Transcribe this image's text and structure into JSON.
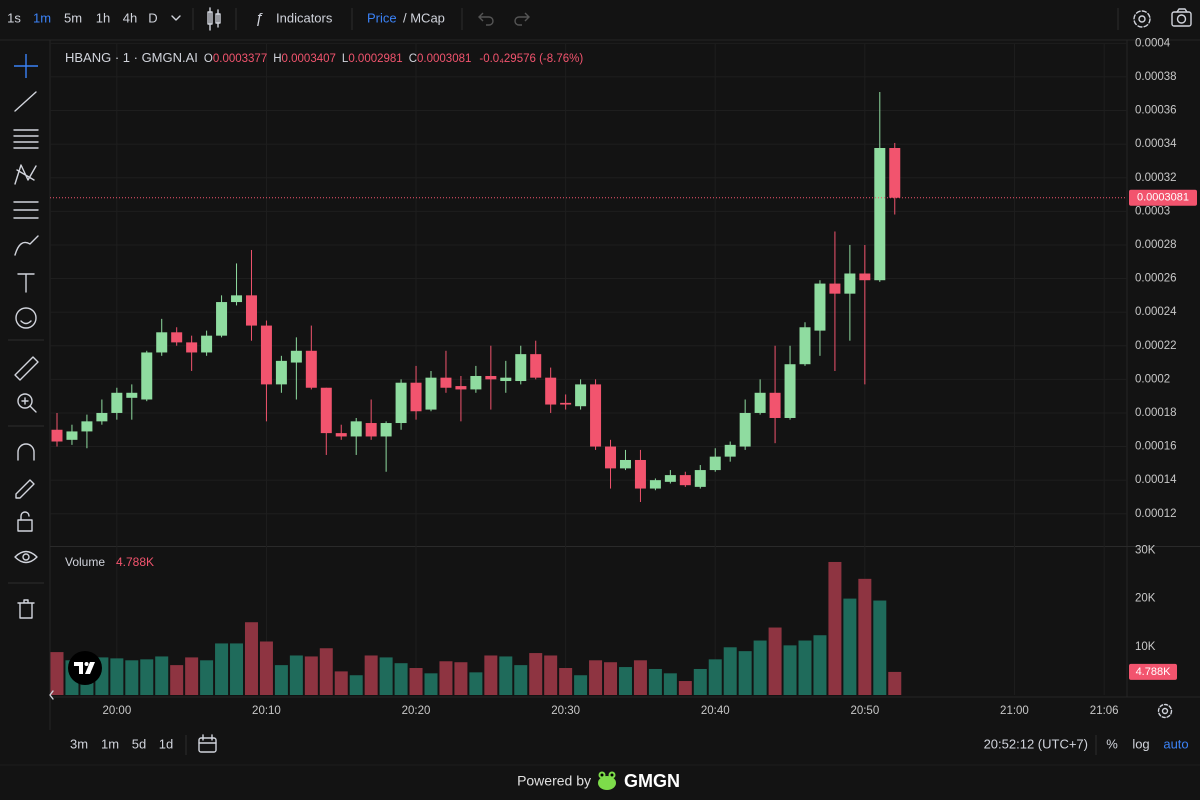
{
  "toolbar": {
    "intervals": [
      "1s",
      "1m",
      "5m",
      "1h",
      "4h",
      "D"
    ],
    "indicators": "Indicators",
    "price": "Price",
    "mcap": "/ MCap"
  },
  "legend": {
    "symbol": "HBANG · 1 · GMGN.AI",
    "ohlc": [
      {
        "key": "O",
        "value": "0.0003377"
      },
      {
        "key": "H",
        "value": "0.0003407"
      },
      {
        "key": "L",
        "value": "0.0002981"
      },
      {
        "key": "C",
        "value": "0.0003081"
      }
    ],
    "change": "-0.0₄29576 (-8.76%)"
  },
  "chart_data": [
    {
      "type": "candlestick",
      "x": [
        "19:56",
        "19:57",
        "19:58",
        "19:59",
        "20:00",
        "20:01",
        "20:02",
        "20:03",
        "20:04",
        "20:05",
        "20:06",
        "20:07",
        "20:08",
        "20:09",
        "20:10",
        "20:11",
        "20:12",
        "20:13",
        "20:14",
        "20:15",
        "20:16",
        "20:17",
        "20:18",
        "20:19",
        "20:20",
        "20:21",
        "20:22",
        "20:23",
        "20:24",
        "20:25",
        "20:26",
        "20:27",
        "20:28",
        "20:29",
        "20:30",
        "20:31",
        "20:32",
        "20:33",
        "20:34",
        "20:35",
        "20:36",
        "20:37",
        "20:38",
        "20:39",
        "20:40",
        "20:41",
        "20:42",
        "20:43",
        "20:44",
        "20:45",
        "20:46",
        "20:47",
        "20:48",
        "20:49",
        "20:50",
        "20:51",
        "20:52"
      ],
      "open": [
        0.00017,
        0.000164,
        0.000169,
        0.000175,
        0.00018,
        0.000189,
        0.000188,
        0.000216,
        0.000228,
        0.000222,
        0.000216,
        0.000226,
        0.000246,
        0.00025,
        0.000232,
        0.000197,
        0.00021,
        0.000217,
        0.000195,
        0.000168,
        0.000166,
        0.000174,
        0.000166,
        0.000174,
        0.000198,
        0.000182,
        0.000201,
        0.000196,
        0.000194,
        0.000202,
        0.000199,
        0.000199,
        0.000215,
        0.000201,
        0.000186,
        0.000184,
        0.000197,
        0.00016,
        0.000147,
        0.000152,
        0.000135,
        0.000139,
        0.000143,
        0.000136,
        0.000146,
        0.000154,
        0.00016,
        0.00018,
        0.000192,
        0.000177,
        0.000209,
        0.000229,
        0.000257,
        0.000251,
        0.000263,
        0.000259,
        0.0003377
      ],
      "high": [
        0.00018,
        0.000173,
        0.000179,
        0.000188,
        0.000195,
        0.000197,
        0.000217,
        0.000236,
        0.000231,
        0.000226,
        0.000229,
        0.00025,
        0.000269,
        0.000277,
        0.000235,
        0.000214,
        0.000225,
        0.000232,
        0.000195,
        0.000173,
        0.000177,
        0.000188,
        0.000175,
        0.0002,
        0.000208,
        0.000205,
        0.000217,
        0.000202,
        0.000208,
        0.00022,
        0.000211,
        0.00022,
        0.000223,
        0.000207,
        0.000191,
        0.0002,
        0.0002,
        0.000164,
        0.000158,
        0.000158,
        0.000141,
        0.000146,
        0.000145,
        0.000149,
        0.000159,
        0.000163,
        0.000188,
        0.0002,
        0.00022,
        0.00022,
        0.000234,
        0.000259,
        0.000288,
        0.00028,
        0.00028,
        0.000371,
        0.0003407
      ],
      "low": [
        0.00016,
        0.000161,
        0.000159,
        0.000173,
        0.000176,
        0.000176,
        0.000187,
        0.000214,
        0.00022,
        0.000205,
        0.000214,
        0.000225,
        0.000244,
        0.000223,
        0.000175,
        0.000192,
        0.000188,
        0.000194,
        0.000155,
        0.000164,
        0.000155,
        0.000164,
        0.000145,
        0.00017,
        0.000176,
        0.000181,
        0.000192,
        0.000175,
        0.000192,
        0.000182,
        0.000192,
        0.000197,
        0.0002,
        0.00018,
        0.000182,
        0.000182,
        0.000158,
        0.000135,
        0.000146,
        0.000127,
        0.000134,
        0.000138,
        0.000136,
        0.000135,
        0.000145,
        0.000151,
        0.000158,
        0.000179,
        0.000162,
        0.000176,
        0.000208,
        0.000214,
        0.000205,
        0.000223,
        0.000197,
        0.000258,
        0.0002981
      ],
      "close": [
        0.000163,
        0.000169,
        0.000175,
        0.00018,
        0.000192,
        0.000192,
        0.000216,
        0.000228,
        0.000222,
        0.000216,
        0.000226,
        0.000246,
        0.00025,
        0.000232,
        0.000197,
        0.000211,
        0.000217,
        0.000195,
        0.000168,
        0.000166,
        0.000175,
        0.000166,
        0.000174,
        0.000198,
        0.000181,
        0.000201,
        0.000195,
        0.000194,
        0.000202,
        0.0002,
        0.000201,
        0.000215,
        0.000201,
        0.000185,
        0.000185,
        0.000197,
        0.00016,
        0.000147,
        0.000152,
        0.000135,
        0.00014,
        0.000143,
        0.000137,
        0.000146,
        0.000154,
        0.000161,
        0.00018,
        0.000192,
        0.000177,
        0.000209,
        0.000231,
        0.000257,
        0.000251,
        0.000263,
        0.000259,
        0.0003377,
        0.0003081
      ],
      "up_color": "#8fdca0",
      "down_color": "#f2546e",
      "ylim": [
        0.0001014,
        0.0003996
      ],
      "yticks": [
        0.00012,
        0.00014,
        0.00016,
        0.00018,
        0.0002,
        0.00022,
        0.00024,
        0.00026,
        0.00028,
        0.0003,
        0.00032,
        0.00034,
        0.00036,
        0.00038,
        0.0004
      ],
      "xticks": [
        "20:00",
        "20:10",
        "20:20",
        "20:30",
        "20:40",
        "20:50",
        "21:00",
        "21:06"
      ],
      "last_price_label": "0.0003081",
      "grid": true
    },
    {
      "type": "bar",
      "title": "Volume",
      "x": [
        "19:56",
        "19:57",
        "19:58",
        "19:59",
        "20:00",
        "20:01",
        "20:02",
        "20:03",
        "20:04",
        "20:05",
        "20:06",
        "20:07",
        "20:08",
        "20:09",
        "20:10",
        "20:11",
        "20:12",
        "20:13",
        "20:14",
        "20:15",
        "20:16",
        "20:17",
        "20:18",
        "20:19",
        "20:20",
        "20:21",
        "20:22",
        "20:23",
        "20:24",
        "20:25",
        "20:26",
        "20:27",
        "20:28",
        "20:29",
        "20:30",
        "20:31",
        "20:32",
        "20:33",
        "20:34",
        "20:35",
        "20:36",
        "20:37",
        "20:38",
        "20:39",
        "20:40",
        "20:41",
        "20:42",
        "20:43",
        "20:44",
        "20:45",
        "20:46",
        "20:47",
        "20:48",
        "20:49",
        "20:50",
        "20:51",
        "20:52"
      ],
      "values": [
        8900,
        7200,
        7200,
        7800,
        7600,
        7200,
        7400,
        8000,
        6200,
        7800,
        7200,
        10700,
        10700,
        15100,
        11100,
        6200,
        8200,
        8000,
        9700,
        4900,
        4100,
        8200,
        7800,
        6600,
        5600,
        4500,
        7000,
        6800,
        4700,
        8200,
        8000,
        6200,
        8700,
        8200,
        5600,
        4100,
        7200,
        6800,
        5800,
        7200,
        5400,
        4500,
        2900,
        5400,
        7400,
        9900,
        9100,
        11300,
        14000,
        10300,
        11300,
        12400,
        27600,
        20000,
        24100,
        19600,
        4788
      ],
      "value_labels": [
        null,
        null,
        null,
        null,
        null,
        null,
        null,
        null,
        null,
        null,
        null,
        null,
        null,
        null,
        null,
        null,
        null,
        null,
        null,
        null,
        null,
        null,
        null,
        null,
        null,
        null,
        null,
        null,
        null,
        null,
        null,
        null,
        null,
        null,
        null,
        null,
        null,
        null,
        null,
        null,
        null,
        null,
        null,
        null,
        null,
        null,
        null,
        null,
        null,
        null,
        null,
        null,
        null,
        null,
        null,
        null,
        "4.788K"
      ],
      "up_color": "#1f6b5b",
      "down_color": "#8e3441",
      "ylim": [
        0,
        30500
      ],
      "yticks": [
        {
          "value": 10000,
          "label": "10K"
        },
        {
          "value": 20000,
          "label": "20K"
        },
        {
          "value": 30000,
          "label": "30K"
        }
      ]
    }
  ],
  "footer": {
    "ranges": [
      "3m",
      "1m",
      "5d",
      "1d"
    ],
    "clock": "20:52:12 (UTC+7)",
    "percent": "%",
    "log": "log",
    "auto": "auto",
    "powered_by": "Powered by",
    "brand": "GMGN"
  }
}
